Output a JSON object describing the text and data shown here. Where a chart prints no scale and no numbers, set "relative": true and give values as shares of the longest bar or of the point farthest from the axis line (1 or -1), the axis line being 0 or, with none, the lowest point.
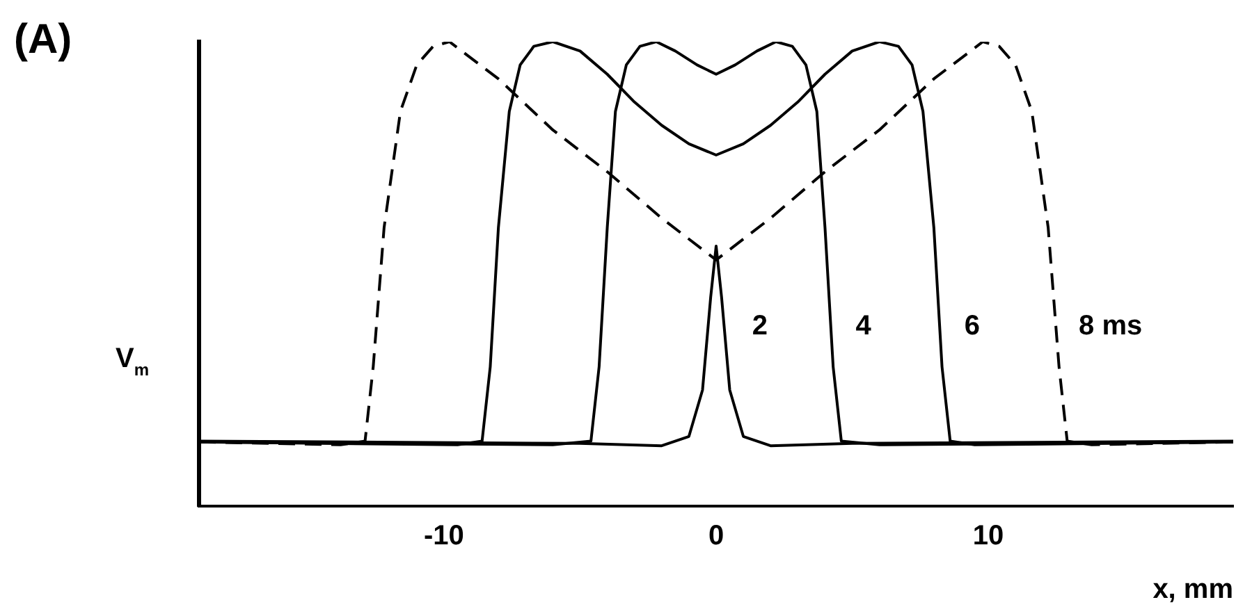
{
  "chart_data": {
    "type": "line",
    "title": "(A)",
    "ylabel": "V$_{m}$",
    "xlabel": "x, mm",
    "relative": true,
    "xlim": [
      -19,
      19
    ],
    "xticks": [
      -10,
      0,
      10
    ],
    "grid": false,
    "tick_labels": "x",
    "marker": "none",
    "series": [
      {
        "name": "2",
        "color": "#000000",
        "line_style": "solid",
        "x": [
          -19,
          -5,
          -2,
          -1,
          -0.5,
          -0.2,
          0,
          0.2,
          0.5,
          1,
          2,
          5,
          19
        ],
        "values": [
          0.14,
          0.135,
          0.13,
          0.15,
          0.25,
          0.45,
          0.56,
          0.45,
          0.25,
          0.15,
          0.13,
          0.135,
          0.14
        ]
      },
      {
        "name": "4",
        "color": "#000000",
        "line_style": "solid",
        "x": [
          -19,
          -6,
          -4.6,
          -4.3,
          -4,
          -3.7,
          -3.3,
          -2.8,
          -2.2,
          -1.5,
          -0.7,
          0,
          0.7,
          1.5,
          2.2,
          2.8,
          3.3,
          3.7,
          4,
          4.3,
          4.6,
          6,
          19
        ],
        "values": [
          0.138,
          0.132,
          0.14,
          0.3,
          0.6,
          0.85,
          0.95,
          0.99,
          1,
          0.98,
          0.95,
          0.93,
          0.95,
          0.98,
          1,
          0.99,
          0.95,
          0.85,
          0.6,
          0.3,
          0.14,
          0.132,
          0.138
        ]
      },
      {
        "name": "6",
        "color": "#000000",
        "line_style": "solid",
        "x": [
          -19,
          -9.5,
          -8.6,
          -8.3,
          -8,
          -7.6,
          -7.2,
          -6.7,
          -6,
          -5,
          -4,
          -3,
          -2,
          -1,
          0,
          1,
          2,
          3,
          4,
          5,
          6,
          6.7,
          7.2,
          7.6,
          8,
          8.3,
          8.6,
          9.5,
          19
        ],
        "values": [
          0.138,
          0.132,
          0.14,
          0.3,
          0.6,
          0.85,
          0.95,
          0.99,
          1,
          0.98,
          0.93,
          0.87,
          0.82,
          0.78,
          0.756,
          0.78,
          0.82,
          0.87,
          0.93,
          0.98,
          1,
          0.99,
          0.95,
          0.85,
          0.6,
          0.3,
          0.14,
          0.132,
          0.138
        ]
      },
      {
        "name": "8 ms",
        "color": "#000000",
        "line_style": "dashed",
        "x": [
          -19,
          -13.8,
          -12.9,
          -12.6,
          -12.2,
          -11.6,
          -11,
          -10.4,
          -9.8,
          -8,
          -6,
          -4,
          -2,
          0,
          2,
          4,
          6,
          8,
          9.8,
          10.4,
          11,
          11.6,
          12.2,
          12.6,
          12.9,
          13.8,
          19
        ],
        "values": [
          0.138,
          0.132,
          0.14,
          0.3,
          0.6,
          0.85,
          0.95,
          0.99,
          1,
          0.92,
          0.81,
          0.72,
          0.62,
          0.53,
          0.62,
          0.72,
          0.81,
          0.92,
          1,
          0.99,
          0.95,
          0.85,
          0.6,
          0.3,
          0.14,
          0.132,
          0.138
        ]
      }
    ]
  }
}
